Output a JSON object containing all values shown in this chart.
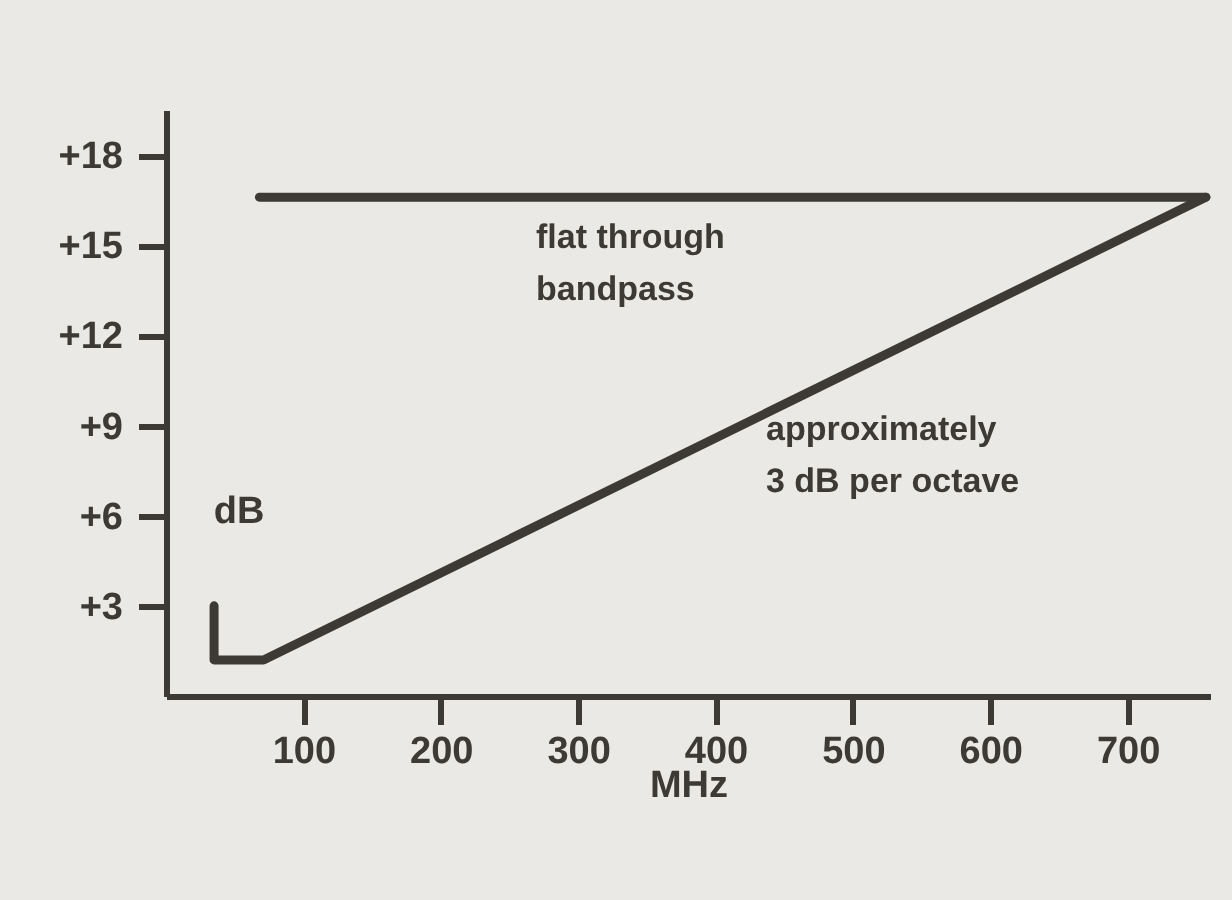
{
  "chart_data": {
    "type": "line",
    "xlabel": "MHz",
    "ylabel": "dB",
    "xlim": [
      0,
      760
    ],
    "ylim": [
      0,
      19.5
    ],
    "xticks": [
      100,
      200,
      300,
      400,
      500,
      600,
      700
    ],
    "yticks": [
      {
        "value": 3,
        "label": "+3"
      },
      {
        "value": 6,
        "label": "+6"
      },
      {
        "value": 9,
        "label": "+9"
      },
      {
        "value": 12,
        "label": "+12"
      },
      {
        "value": 15,
        "label": "+15"
      },
      {
        "value": 18,
        "label": "+18"
      }
    ],
    "series": [
      {
        "color": "#3d3a35",
        "x": [
          68,
          757
        ],
        "values": [
          16.6,
          16.6
        ]
      },
      {
        "color": "#3d3a35",
        "x": [
          35,
          35,
          71,
          757
        ],
        "values": [
          3,
          1.2,
          1.2,
          16.6
        ]
      }
    ],
    "annotations": [
      "flat through\nbandpass",
      "approximately\n3 dB per octave"
    ],
    "grid": false,
    "marker": "none",
    "line_style": "solid"
  }
}
